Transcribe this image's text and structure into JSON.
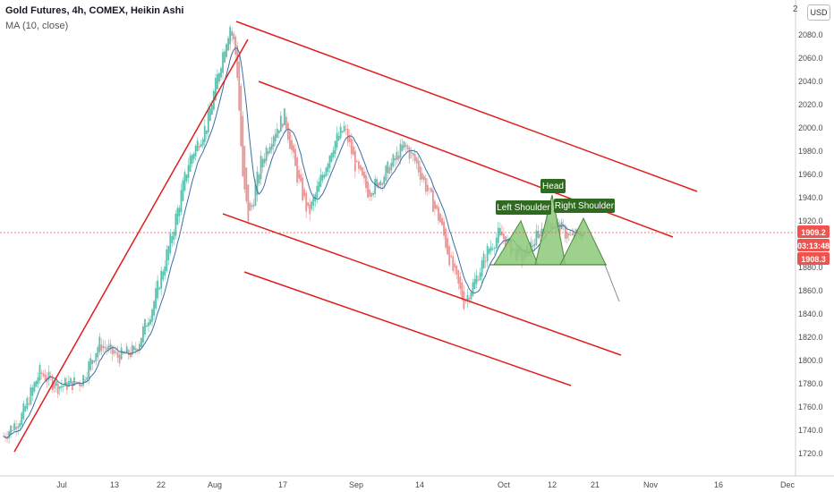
{
  "header": {
    "title": "Gold Futures, 4h, COMEX, Heikin Ashi",
    "indicator": "MA (10, close)",
    "top_right": "2",
    "currency_button": "USD"
  },
  "colors": {
    "up": "#5fbfae",
    "down": "#e99494",
    "ma": "#3a6ea5",
    "trendline": "#e01e1e",
    "pattern_fill": "#8dc97a",
    "label_bg": "#2f6b1f",
    "price_tag": "#ef5350"
  },
  "chart_data": {
    "type": "candlestick",
    "title": "Gold Futures, 4h, COMEX, Heikin Ashi",
    "ylim": [
      1710,
      2100
    ],
    "y_ticks": [
      "2080.0",
      "2060.0",
      "2040.0",
      "2020.0",
      "2000.0",
      "1980.0",
      "1960.0",
      "1940.0",
      "1920.0",
      "1900.0",
      "1880.0",
      "1860.0",
      "1840.0",
      "1820.0",
      "1800.0",
      "1780.0",
      "1760.0",
      "1740.0",
      "1720.0"
    ],
    "x_ticks": [
      "Jul",
      "13",
      "22",
      "Aug",
      "17",
      "Sep",
      "14",
      "Oct",
      "12",
      "21",
      "Nov",
      "16",
      "Dec"
    ],
    "price_path": [
      [
        0,
        1735
      ],
      [
        3,
        1752
      ],
      [
        6,
        1790
      ],
      [
        9,
        1778
      ],
      [
        13,
        1782
      ],
      [
        16,
        1815
      ],
      [
        19,
        1803
      ],
      [
        22,
        1808
      ],
      [
        25,
        1848
      ],
      [
        28,
        1905
      ],
      [
        31,
        1972
      ],
      [
        34,
        2003
      ],
      [
        37,
        2072
      ],
      [
        38,
        2090
      ],
      [
        39,
        2057
      ],
      [
        40,
        1955
      ],
      [
        41,
        1920
      ],
      [
        43,
        1970
      ],
      [
        45,
        1995
      ],
      [
        47,
        2010
      ],
      [
        49,
        1960
      ],
      [
        51,
        1925
      ],
      [
        53,
        1955
      ],
      [
        55,
        1985
      ],
      [
        57,
        2000
      ],
      [
        59,
        1965
      ],
      [
        61,
        1945
      ],
      [
        63,
        1955
      ],
      [
        65,
        1970
      ],
      [
        67,
        1985
      ],
      [
        69,
        1970
      ],
      [
        71,
        1945
      ],
      [
        73,
        1920
      ],
      [
        75,
        1880
      ],
      [
        77,
        1850
      ],
      [
        79,
        1870
      ],
      [
        81,
        1895
      ],
      [
        83,
        1910
      ],
      [
        85,
        1895
      ],
      [
        87,
        1888
      ],
      [
        89,
        1905
      ],
      [
        91,
        1920
      ],
      [
        93,
        1914
      ],
      [
        95,
        1905
      ],
      [
        97,
        1910
      ]
    ],
    "price_labels": [
      "1909.2",
      "03:13:48",
      "1908.3"
    ],
    "annotations": [
      "Left Shoulder",
      "Head",
      "Right Shoulder"
    ],
    "indicator": "MA (10, close)",
    "grid": false
  }
}
